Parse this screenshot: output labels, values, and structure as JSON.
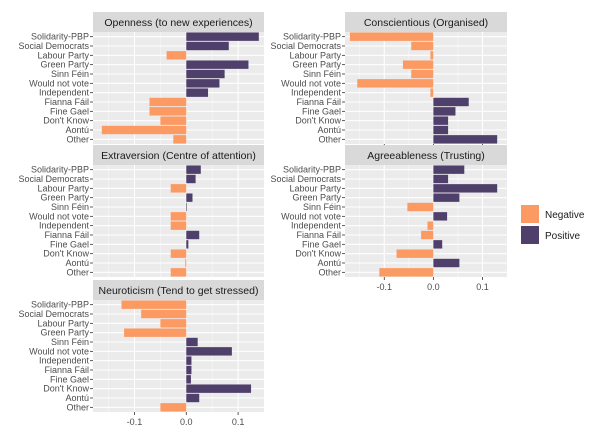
{
  "chart_data": {
    "type": "bar",
    "orientation": "horizontal",
    "legend_position": "right",
    "grid": true,
    "xlim": [
      -0.18,
      0.15
    ],
    "x_ticks": [
      -0.1,
      0.0,
      0.1
    ],
    "x_tick_labels": [
      "-0.1",
      "0.0",
      "0.1"
    ],
    "categories": [
      "Solidarity-PBP",
      "Social Democrats",
      "Labour Party",
      "Green Party",
      "Sinn Féin",
      "Would not vote",
      "Independent",
      "Fianna Fáil",
      "Fine Gael",
      "Don't Know",
      "Aontú",
      "Other"
    ],
    "legend": [
      {
        "label": "Negative",
        "color": "#FB9A62"
      },
      {
        "label": "Positive",
        "color": "#4F3F6B"
      }
    ],
    "panels": [
      {
        "title": "Openness (to new experiences)",
        "categories": [
          "Solidarity-PBP",
          "Social Democrats",
          "Labour Party",
          "Green Party",
          "Sinn Féin",
          "Would not vote",
          "Independent",
          "Fianna Fáil",
          "Fine Gael",
          "Don't Know",
          "Aontú",
          "Other"
        ],
        "values": [
          0.14,
          0.082,
          -0.038,
          0.12,
          0.074,
          0.064,
          0.042,
          -0.071,
          -0.071,
          -0.05,
          -0.163,
          -0.025
        ]
      },
      {
        "title": "Conscientious (Organised)",
        "categories": [
          "Solidarity-PBP",
          "Social Democrats",
          "Labour Party",
          "Green Party",
          "Sinn Féin",
          "Would not vote",
          "Independent",
          "Fianna Fáil",
          "Fine Gael",
          "Don't Know",
          "Aontú",
          "Other"
        ],
        "values": [
          -0.17,
          -0.045,
          -0.006,
          -0.062,
          -0.045,
          -0.155,
          -0.006,
          0.072,
          0.045,
          0.03,
          0.03,
          0.13
        ]
      },
      {
        "title": "Extraversion (Centre of attention)",
        "categories": [
          "Solidarity-PBP",
          "Social Democrats",
          "Labour Party",
          "Green Party",
          "Sinn Féin",
          "Would not vote",
          "Independent",
          "Fianna Fáil",
          "Fine Gael",
          "Don't Know",
          "Aontú",
          "Other"
        ],
        "values": [
          0.028,
          0.018,
          -0.03,
          0.012,
          0.0,
          -0.03,
          -0.03,
          0.025,
          0.004,
          -0.03,
          -0.002,
          -0.03
        ]
      },
      {
        "title": "Agreeableness (Trusting)",
        "categories": [
          "Solidarity-PBP",
          "Social Democrats",
          "Labour Party",
          "Green Party",
          "Sinn Féin",
          "Would not vote",
          "Independent",
          "Fianna Fáil",
          "Fine Gael",
          "Don't Know",
          "Aontú",
          "Other"
        ],
        "values": [
          0.063,
          0.03,
          0.13,
          0.053,
          -0.053,
          0.028,
          -0.012,
          -0.025,
          0.018,
          -0.075,
          0.053,
          -0.11
        ]
      },
      {
        "title": "Neuroticism (Tend to get stressed)",
        "categories": [
          "Solidarity-PBP",
          "Social Democrats",
          "Labour Party",
          "Green Party",
          "Sinn Féin",
          "Would not vote",
          "Independent",
          "Fianna Fáil",
          "Fine Gael",
          "Don't Know",
          "Aontú",
          "Other"
        ],
        "values": [
          -0.125,
          -0.087,
          -0.05,
          -0.12,
          0.022,
          0.088,
          0.01,
          0.01,
          0.009,
          0.125,
          0.025,
          -0.05
        ]
      }
    ]
  }
}
